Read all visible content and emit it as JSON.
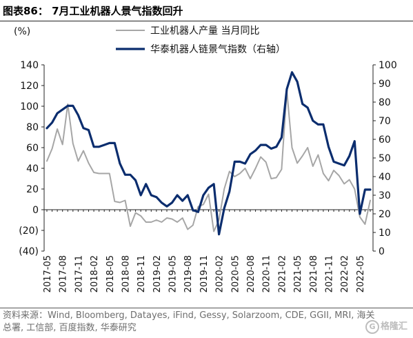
{
  "header": {
    "title": "图表86： 7月工业机器人景气指数回升"
  },
  "chart_data": {
    "type": "line",
    "unit_label": "(%)",
    "x": [
      "2017-05",
      "2017-06",
      "2017-07",
      "2017-08",
      "2017-09",
      "2017-10",
      "2017-11",
      "2017-12",
      "2018-01",
      "2018-02",
      "2018-03",
      "2018-04",
      "2018-05",
      "2018-06",
      "2018-07",
      "2018-08",
      "2018-09",
      "2018-10",
      "2018-11",
      "2018-12",
      "2019-01",
      "2019-02",
      "2019-03",
      "2019-04",
      "2019-05",
      "2019-06",
      "2019-07",
      "2019-08",
      "2019-09",
      "2019-10",
      "2019-11",
      "2019-12",
      "2020-01",
      "2020-02",
      "2020-03",
      "2020-04",
      "2020-05",
      "2020-06",
      "2020-07",
      "2020-08",
      "2020-09",
      "2020-10",
      "2020-11",
      "2020-12",
      "2021-01",
      "2021-02",
      "2021-03",
      "2021-04",
      "2021-05",
      "2021-06",
      "2021-07",
      "2021-08",
      "2021-09",
      "2021-10",
      "2021-11",
      "2021-12",
      "2022-01",
      "2022-02",
      "2022-03",
      "2022-04",
      "2022-05",
      "2022-06",
      "2022-07"
    ],
    "x_tick_labels": [
      "2017-05",
      "2017-08",
      "2017-11",
      "2018-02",
      "2018-05",
      "2018-08",
      "2018-11",
      "2019-02",
      "2019-05",
      "2019-08",
      "2019-11",
      "2020-02",
      "2020-05",
      "2020-08",
      "2020-11",
      "2021-02",
      "2021-05",
      "2021-08",
      "2021-11",
      "2022-02",
      "2022-05"
    ],
    "ylim_left": [
      -40,
      140
    ],
    "yticks_left": [
      "(40)",
      "(20)",
      "0",
      "20",
      "40",
      "60",
      "80",
      "100",
      "120",
      "140"
    ],
    "ylim_right": [
      0,
      100
    ],
    "yticks_right": [
      "0",
      "10",
      "20",
      "30",
      "40",
      "50",
      "60",
      "70",
      "80",
      "90",
      "100"
    ],
    "grid": false,
    "legend_position": "top",
    "series": [
      {
        "name": "工业机器人产量 当月同比",
        "axis": "left",
        "color": "#a6a6a6",
        "values": [
          47,
          59,
          78,
          63,
          102,
          64,
          47,
          57,
          45,
          36,
          35,
          35,
          35,
          8,
          7,
          9,
          -16,
          -3,
          -6,
          -12,
          -12,
          -10,
          -12,
          -8,
          -9,
          -12,
          -8,
          -19,
          -15,
          3,
          5,
          15,
          -21,
          -10,
          20,
          37,
          32,
          35,
          40,
          30,
          40,
          51,
          46,
          30,
          31,
          39,
          115,
          60,
          45,
          52,
          60,
          42,
          53,
          35,
          28,
          38,
          33,
          25,
          29,
          20,
          -7,
          -14,
          9
        ],
        "stroke_width": 2
      },
      {
        "name": "华泰机器人链景气指数（右轴）",
        "axis": "right",
        "color": "#0b2d6e",
        "values": [
          66,
          69,
          74,
          76,
          78,
          78,
          73,
          66,
          65,
          56,
          56,
          57,
          58,
          58,
          47,
          41,
          41,
          38,
          30,
          36,
          30,
          29,
          26,
          24,
          26,
          30,
          27,
          30,
          22,
          21,
          30,
          34,
          36,
          9,
          23,
          32,
          48,
          48,
          47,
          52,
          54,
          57,
          57,
          55,
          56,
          61,
          87,
          96,
          91,
          79,
          77,
          70,
          68,
          68,
          56,
          48,
          47,
          46,
          51,
          59,
          20,
          33,
          33
        ],
        "stroke_width": 3.2
      }
    ]
  },
  "source": {
    "text": "资料来源：Wind, Bloomberg, Datayes, iFind, Gessy, Solarzoom, CDE, GGII, MRI, 海关总署, 工信部, 百度指数, 华泰研究"
  },
  "watermark": {
    "text": "格隆汇",
    "glyph": "G"
  }
}
